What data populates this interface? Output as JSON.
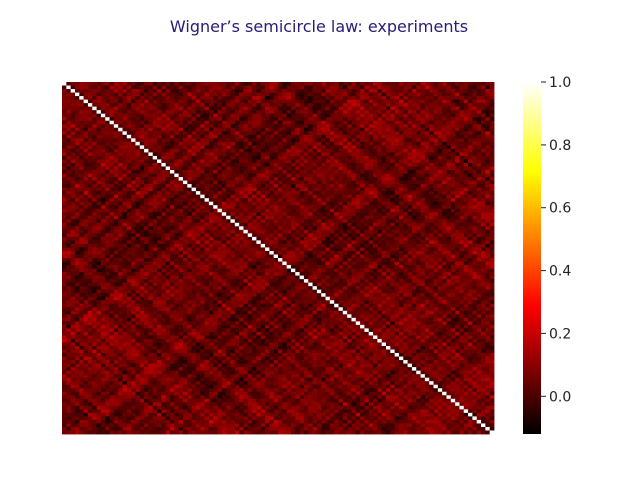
{
  "chart_data": {
    "type": "heatmap",
    "title": "Wigner’s semicircle law: experiments",
    "xlabel": "",
    "ylabel": "",
    "matrix_size": 100,
    "diagonal_value": 1.0,
    "off_diagonal_range": [
      -0.12,
      0.22
    ],
    "grid": false,
    "colormap": "hot",
    "colorbar": {
      "position": "right",
      "range": [
        -0.12,
        1.0
      ],
      "ticks": [
        {
          "value": 1.0,
          "label": "1.0"
        },
        {
          "value": 0.8,
          "label": "0.8"
        },
        {
          "value": 0.6,
          "label": "0.6"
        },
        {
          "value": 0.4,
          "label": "0.4"
        },
        {
          "value": 0.2,
          "label": "0.2"
        },
        {
          "value": 0.0,
          "label": "0.0"
        }
      ]
    }
  }
}
